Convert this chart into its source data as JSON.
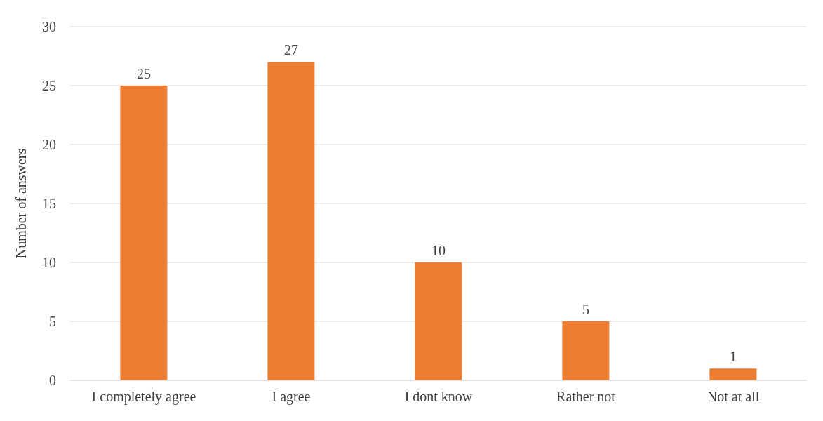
{
  "chart_data": {
    "type": "bar",
    "ylabel": "Number of answers",
    "categories": [
      "I completely agree",
      "I agree",
      "I dont know",
      "Rather not",
      "Not at all"
    ],
    "values": [
      25,
      27,
      10,
      5,
      1
    ],
    "color": "#ed7d31",
    "ylim": [
      0,
      30
    ],
    "yticks": [
      0,
      5,
      10,
      15,
      20,
      25,
      30
    ],
    "grid": "y",
    "data_labels": true
  }
}
